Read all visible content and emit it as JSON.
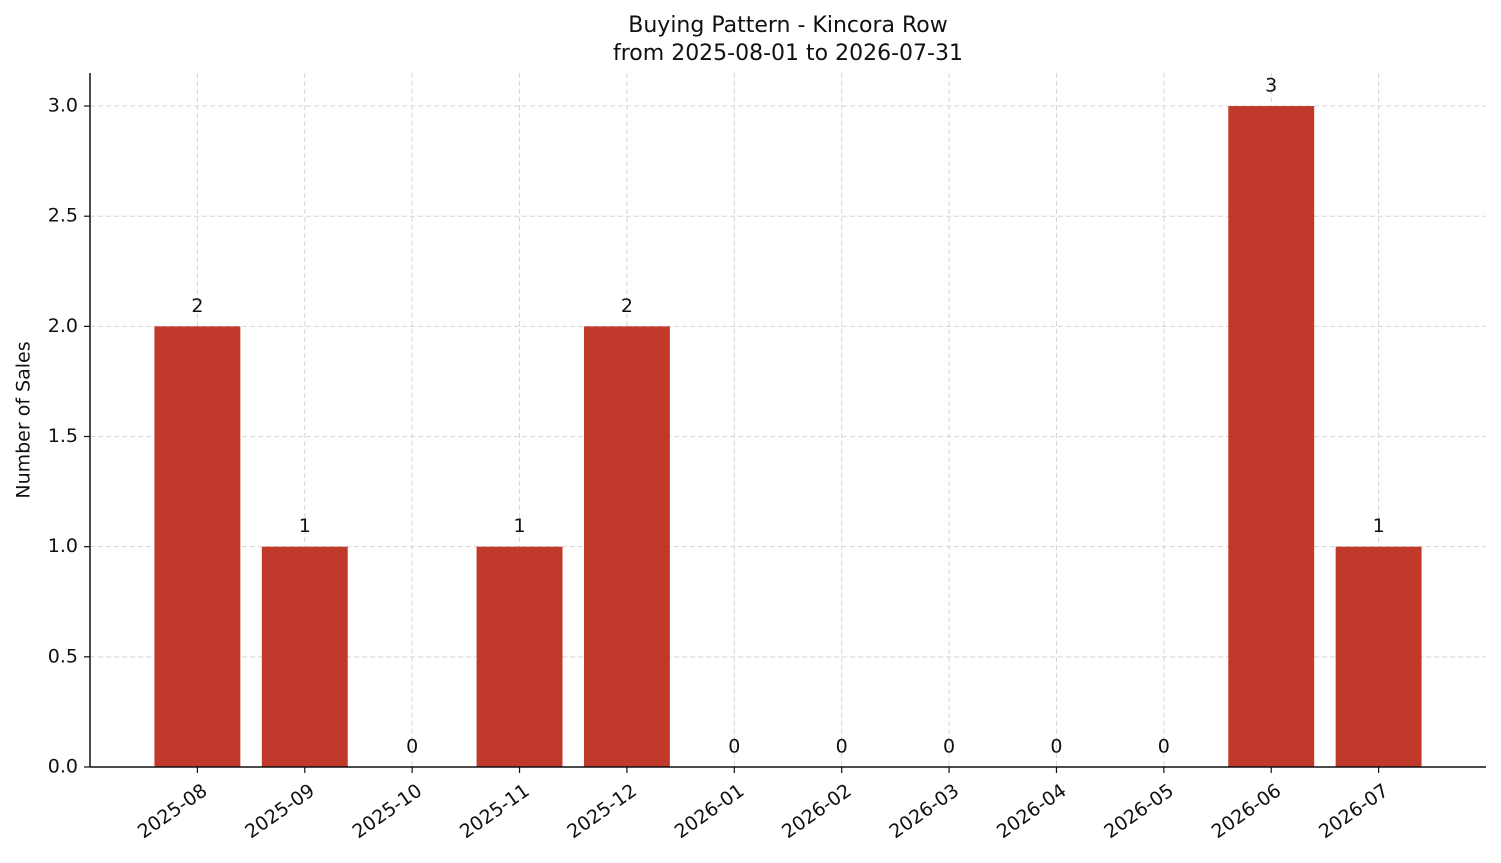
{
  "chart_data": {
    "type": "bar",
    "title": "Buying Pattern - Kincora Row",
    "subtitle": "from 2025-08-01 to 2026-07-31",
    "y_label": "Number of Sales",
    "categories": [
      "2025-08",
      "2025-09",
      "2025-10",
      "2025-11",
      "2025-12",
      "2026-01",
      "2026-02",
      "2026-03",
      "2026-04",
      "2026-05",
      "2026-06",
      "2026-07"
    ],
    "values": [
      2,
      1,
      0,
      1,
      2,
      0,
      0,
      0,
      0,
      0,
      3,
      1
    ],
    "color": "#c0392b",
    "ylim": [
      0,
      3.15
    ],
    "yticks": [
      {
        "value": 0,
        "label": "0.0"
      },
      0.5,
      {
        "value": 1,
        "label": "1.0"
      },
      1.5,
      {
        "value": 2,
        "label": "2.0"
      },
      2.5,
      {
        "value": 3,
        "label": "3.0"
      }
    ],
    "grid": true
  }
}
